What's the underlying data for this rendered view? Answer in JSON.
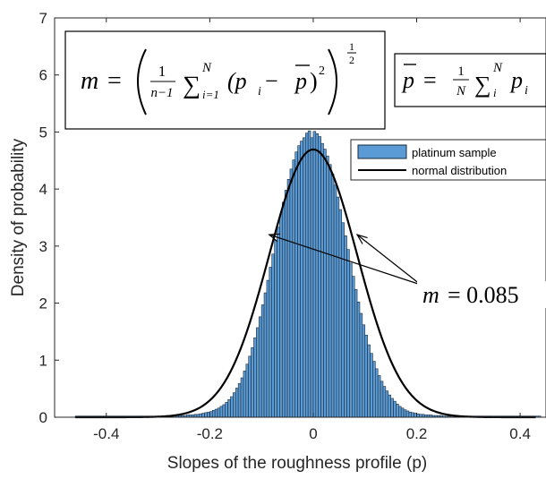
{
  "chart_data": {
    "type": "bar",
    "xlabel": "Slopes of the roughness profile (p)",
    "ylabel": "Density of probability",
    "xlim": [
      -0.5,
      0.45
    ],
    "ylim": [
      0,
      7
    ],
    "xticks": [
      "-0.4",
      "-0.2",
      "0",
      "0.2",
      "0.4"
    ],
    "yticks": [
      "0",
      "1",
      "2",
      "3",
      "4",
      "5",
      "6",
      "7"
    ],
    "series": [
      {
        "name": "platinum sample",
        "kind": "histogram",
        "color": "#5b9bd5",
        "edge_color": "#1a2a3a",
        "bin_start": -0.46,
        "bin_width": 0.005,
        "values": [
          0.02,
          0.02,
          0.02,
          0.02,
          0.02,
          0.02,
          0.02,
          0.02,
          0.02,
          0.02,
          0.02,
          0.02,
          0.02,
          0.02,
          0.02,
          0.02,
          0.02,
          0.02,
          0.02,
          0.02,
          0.02,
          0.02,
          0.02,
          0.02,
          0.02,
          0.02,
          0.02,
          0.02,
          0.02,
          0.02,
          0.02,
          0.02,
          0.02,
          0.02,
          0.02,
          0.02,
          0.02,
          0.02,
          0.02,
          0.03,
          0.03,
          0.03,
          0.03,
          0.04,
          0.04,
          0.04,
          0.05,
          0.05,
          0.06,
          0.07,
          0.08,
          0.09,
          0.1,
          0.12,
          0.14,
          0.16,
          0.19,
          0.22,
          0.26,
          0.31,
          0.36,
          0.43,
          0.51,
          0.59,
          0.69,
          0.81,
          0.93,
          1.07,
          1.22,
          1.39,
          1.57,
          1.76,
          1.97,
          2.18,
          2.4,
          2.63,
          2.86,
          3.1,
          3.33,
          3.55,
          3.77,
          3.98,
          4.17,
          4.35,
          4.51,
          4.65,
          4.76,
          4.84,
          4.9,
          4.98,
          5.02,
          4.9,
          5.01,
          4.97,
          4.92,
          4.8,
          4.7,
          4.58,
          4.43,
          4.26,
          4.07,
          3.86,
          3.64,
          3.41,
          3.18,
          2.94,
          2.7,
          2.47,
          2.24,
          2.02,
          1.82,
          1.62,
          1.44,
          1.27,
          1.12,
          0.98,
          0.85,
          0.73,
          0.63,
          0.54,
          0.46,
          0.39,
          0.33,
          0.28,
          0.23,
          0.19,
          0.16,
          0.13,
          0.11,
          0.09,
          0.08,
          0.07,
          0.06,
          0.05,
          0.05,
          0.04,
          0.04,
          0.04,
          0.03,
          0.03,
          0.03,
          0.03,
          0.02,
          0.02,
          0.02,
          0.02,
          0.02,
          0.02,
          0.02,
          0.02,
          0.02,
          0.02,
          0.02,
          0.02,
          0.02,
          0.02,
          0.02,
          0.02,
          0.02,
          0.02,
          0.02,
          0.02,
          0.02,
          0.02,
          0.02,
          0.02,
          0.02,
          0.02,
          0.02,
          0.02,
          0.02,
          0.02,
          0.02,
          0.02,
          0.02,
          0.02,
          0.02,
          0.02,
          0.02,
          0.02
        ]
      },
      {
        "name": "normal distribution",
        "kind": "curve",
        "color": "#000000",
        "mean": 0.0,
        "std": 0.085
      }
    ],
    "legend_position": "top-right",
    "grid": false,
    "annotations": {
      "formula_m": {
        "lhs": "m",
        "eq": "=",
        "frac_num": "1",
        "frac_den": "n−1",
        "sum": "∑",
        "sum_upper": "N",
        "sum_lower": "i=1",
        "body": "(p",
        "body_sub": "i",
        "body_mid": " − ",
        "pbar": "p",
        "body_end": ")",
        "body_sup": "2",
        "outer_exp": "1",
        "outer_exp_den": "2"
      },
      "formula_pbar": {
        "lhs": "p",
        "eq": "=",
        "frac_num": "1",
        "frac_den": "N",
        "sum": "∑",
        "sum_upper": "N",
        "sum_lower": "i",
        "body": "p",
        "body_sub": "i"
      },
      "m_value": {
        "lhs": "m",
        "rhs": "= 0.085",
        "arrow_points": [
          {
            "x": -0.085,
            "y": 3.2
          },
          {
            "x": 0.085,
            "y": 3.2
          }
        ]
      }
    }
  }
}
